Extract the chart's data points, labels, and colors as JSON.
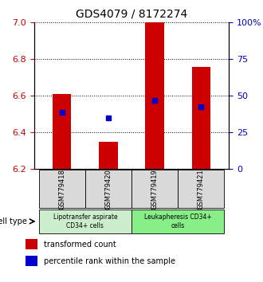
{
  "title": "GDS4079 / 8172274",
  "samples": [
    "GSM779418",
    "GSM779420",
    "GSM779419",
    "GSM779421"
  ],
  "red_bar_values": [
    6.61,
    6.35,
    7.0,
    6.76
  ],
  "blue_dot_values": [
    6.51,
    6.48,
    6.575,
    6.54
  ],
  "bar_base": 6.2,
  "y_min": 6.2,
  "y_max": 7.0,
  "left_yticks": [
    6.2,
    6.4,
    6.6,
    6.8,
    7.0
  ],
  "right_yticks_vals": [
    0,
    25,
    50,
    75,
    100
  ],
  "right_yticks_pos": [
    6.2,
    6.4,
    6.6,
    6.8,
    7.0
  ],
  "cell_type_label": "cell type",
  "group_labels": [
    "Lipotransfer aspirate\nCD34+ cells",
    "Leukapheresis CD34+\ncells"
  ],
  "group_colors": [
    "#ccffcc",
    "#66ff66"
  ],
  "group_bg_colors": [
    "#d9d9d9",
    "#d9d9d9"
  ],
  "bar_color": "#cc0000",
  "dot_color": "#0000cc",
  "bar_width": 0.4,
  "legend_red": "transformed count",
  "legend_blue": "percentile rank within the sample"
}
